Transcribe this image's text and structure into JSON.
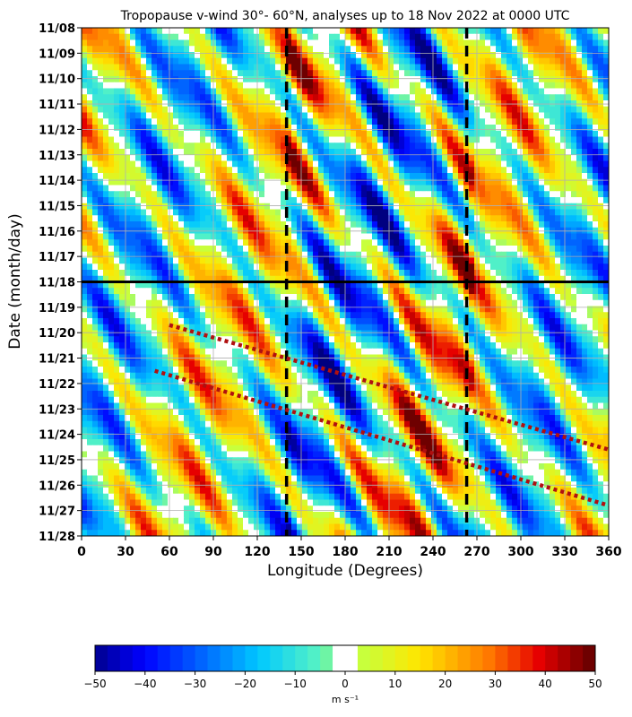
{
  "chart_data": {
    "type": "heatmap",
    "title": "Tropopause v-wind 30°- 60°N, analyses up to 18 Nov 2022 at 0000 UTC",
    "xlabel": "Longitude (Degrees)",
    "ylabel": "Date (month/day)",
    "xlim": [
      0,
      360
    ],
    "x_ticks": [
      0,
      30,
      60,
      90,
      120,
      150,
      180,
      210,
      240,
      270,
      300,
      330,
      360
    ],
    "y_ticks": [
      "11/08",
      "11/09",
      "11/10",
      "11/11",
      "11/12",
      "11/13",
      "11/14",
      "11/15",
      "11/16",
      "11/17",
      "11/18",
      "11/19",
      "11/20",
      "11/21",
      "11/22",
      "11/23",
      "11/24",
      "11/25",
      "11/26",
      "11/27",
      "11/28"
    ],
    "grid": true,
    "colorbar": {
      "ticks": [
        -50,
        -40,
        -30,
        -20,
        -10,
        0,
        10,
        20,
        30,
        40,
        50
      ],
      "tick_labels": [
        "−50",
        "−40",
        "−30",
        "−20",
        "−10",
        "0",
        "10",
        "20",
        "30",
        "40",
        "50"
      ],
      "unit": "m s⁻¹",
      "range": [
        -50,
        50
      ],
      "white_band": [
        -2.5,
        2.5
      ]
    },
    "reference_lines": {
      "analysis_time": "11/18",
      "vertical_dashed_longitudes": [
        140,
        263
      ],
      "dotted_trend_lines": [
        {
          "from": {
            "lon": 60,
            "date": "11/19.7"
          },
          "to": {
            "lon": 360,
            "date": "11/24.6"
          }
        },
        {
          "from": {
            "lon": 50,
            "date": "11/21.5"
          },
          "to": {
            "lon": 360,
            "date": "11/26.8"
          }
        }
      ]
    },
    "colors": {
      "analysis_line": "#000000",
      "dashed_lines": "#000000",
      "dotted_lines": "#b01010"
    }
  }
}
